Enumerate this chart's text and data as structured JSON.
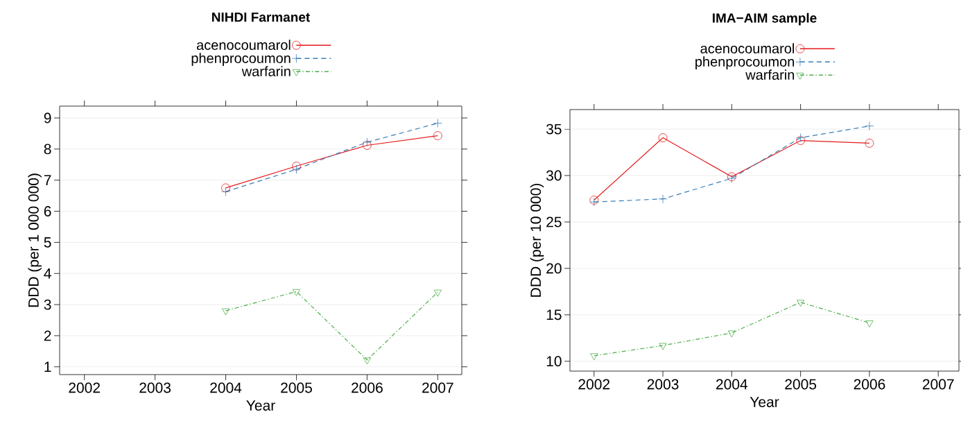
{
  "chart_data": [
    {
      "type": "line",
      "title": "NIHDI Farmanet",
      "xlabel": "Year",
      "ylabel": "DDD (per 1 000 000)",
      "x": [
        2004,
        2005,
        2006,
        2007
      ],
      "series": [
        {
          "name": "acenocoumarol",
          "color": "#e41a1c",
          "marker": "circle",
          "line_style": "solid",
          "values": [
            6.75,
            7.45,
            8.12,
            8.43
          ]
        },
        {
          "name": "phenprocoumon",
          "color": "#377eb8",
          "marker": "cross",
          "line_style": "dashed",
          "values": [
            6.63,
            7.35,
            8.22,
            8.83
          ]
        },
        {
          "name": "warfarin",
          "color": "#4daf4a",
          "marker": "triangle",
          "line_style": "dashdot",
          "values": [
            2.8,
            3.42,
            1.22,
            3.4
          ]
        }
      ],
      "xlim": [
        2001.65,
        2007.34
      ],
      "ylim": [
        0.75,
        9.38
      ],
      "xticks": [
        2002,
        2003,
        2004,
        2005,
        2006,
        2007
      ],
      "yticks": [
        1,
        2,
        3,
        4,
        5,
        6,
        7,
        8,
        9
      ],
      "grid": "y",
      "legend": "top"
    },
    {
      "type": "line",
      "title": "IMA−AIM sample",
      "xlabel": "Year",
      "ylabel": "DDD (per 10 000)",
      "x": [
        2002,
        2003,
        2004,
        2005,
        2006
      ],
      "series": [
        {
          "name": "acenocoumarol",
          "color": "#e41a1c",
          "marker": "circle",
          "line_style": "solid",
          "values": [
            27.35,
            34.07,
            29.87,
            33.77,
            33.48
          ]
        },
        {
          "name": "phenprocoumon",
          "color": "#377eb8",
          "marker": "cross",
          "line_style": "dashed",
          "values": [
            27.15,
            27.48,
            29.7,
            34.07,
            35.33
          ]
        },
        {
          "name": "warfarin",
          "color": "#4daf4a",
          "marker": "triangle",
          "line_style": "dashdot",
          "values": [
            10.6,
            11.7,
            13.05,
            16.35,
            14.13
          ]
        }
      ],
      "xlim": [
        2001.65,
        2007.3
      ],
      "ylim": [
        8.94,
        37.1
      ],
      "xticks": [
        2002,
        2003,
        2004,
        2005,
        2006,
        2007
      ],
      "yticks": [
        10,
        15,
        20,
        25,
        30,
        35
      ],
      "grid": "y",
      "legend": "top"
    }
  ]
}
